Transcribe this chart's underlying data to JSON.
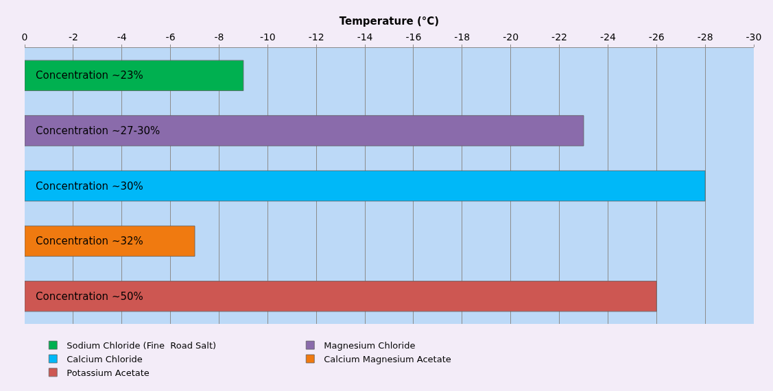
{
  "chart_data": {
    "type": "bar",
    "orientation": "horizontal",
    "xlabel": "Temperature (°C)",
    "categories": [
      null,
      null,
      null,
      null,
      null
    ],
    "series": [
      {
        "name": "Sodium Chloride (Fine  Road Salt)",
        "color": "#00b050",
        "values": [
          -9,
          null,
          null,
          null,
          null
        ]
      },
      {
        "name": "Magnesium Chloride",
        "color": "#8a6bab",
        "values": [
          null,
          -23,
          null,
          null,
          null
        ]
      },
      {
        "name": "Calcium Chloride",
        "color": "#00b8f8",
        "values": [
          null,
          null,
          -28,
          null,
          null
        ]
      },
      {
        "name": "Calcium Magnesium Acetate",
        "color": "#f07a10",
        "values": [
          null,
          null,
          null,
          -7,
          null
        ]
      },
      {
        "name": "Potassium Acetate",
        "color": "#cd5752",
        "values": [
          null,
          null,
          null,
          null,
          -26
        ]
      }
    ],
    "annotations": [
      "Concentration ~23%",
      "Concentration ~27-30%",
      "Concentration ~30%",
      "Concentration ~32%",
      "Concentration ~50%"
    ],
    "xlim": [
      0,
      -30
    ],
    "xticks": [
      0,
      -2,
      -4,
      -6,
      -8,
      -10,
      -12,
      -14,
      -16,
      -18,
      -20,
      -22,
      -24,
      -26,
      -28,
      -30
    ],
    "grid": "x",
    "legend": "bottom"
  }
}
